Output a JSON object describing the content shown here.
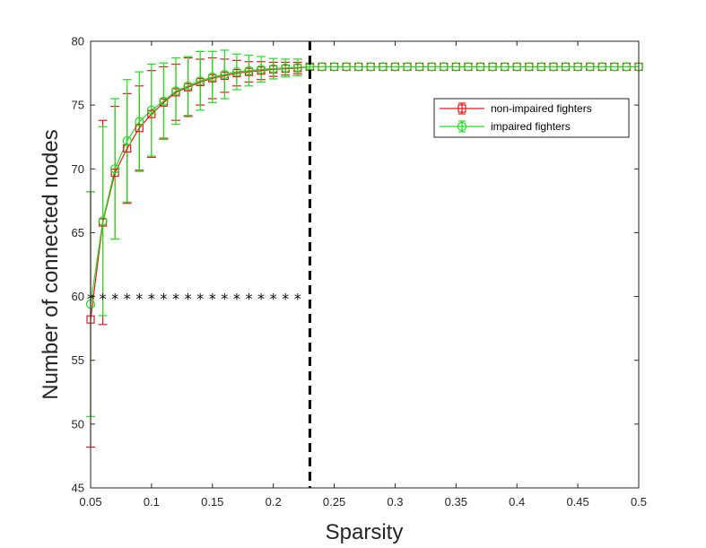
{
  "chart_data": {
    "type": "line",
    "title": "",
    "xlabel": "Sparsity",
    "ylabel": "Number of connected nodes",
    "xlim": [
      0.05,
      0.5
    ],
    "ylim": [
      45,
      80
    ],
    "x_ticks": [
      "0.05",
      "0.1",
      "0.15",
      "0.2",
      "0.25",
      "0.3",
      "0.35",
      "0.4",
      "0.45",
      "0.5"
    ],
    "y_ticks": [
      "45",
      "50",
      "55",
      "60",
      "65",
      "70",
      "75",
      "80"
    ],
    "grid": false,
    "legend_position": "top-right",
    "x": [
      0.05,
      0.06,
      0.07,
      0.08,
      0.09,
      0.1,
      0.11,
      0.12,
      0.13,
      0.14,
      0.15,
      0.16,
      0.17,
      0.18,
      0.19,
      0.2,
      0.21,
      0.22,
      0.23,
      0.24,
      0.25,
      0.26,
      0.27,
      0.28,
      0.29,
      0.3,
      0.31,
      0.32,
      0.33,
      0.34,
      0.35,
      0.36,
      0.37,
      0.38,
      0.39,
      0.4,
      0.41,
      0.42,
      0.43,
      0.44,
      0.45,
      0.46,
      0.47,
      0.48,
      0.49,
      0.5
    ],
    "series": [
      {
        "name": "non-impaired fighters",
        "color": "#e31a1c",
        "marker": "square",
        "values": [
          58.2,
          65.8,
          69.7,
          71.6,
          73.2,
          74.3,
          75.2,
          76.0,
          76.4,
          76.8,
          77.1,
          77.3,
          77.5,
          77.6,
          77.7,
          77.8,
          77.85,
          77.9,
          78.0,
          78.0,
          78.0,
          78.0,
          78.0,
          78.0,
          78.0,
          78.0,
          78.0,
          78.0,
          78.0,
          78.0,
          78.0,
          78.0,
          78.0,
          78.0,
          78.0,
          78.0,
          78.0,
          78.0,
          78.0,
          78.0,
          78.0,
          78.0,
          78.0,
          78.0,
          78.0,
          78.0
        ],
        "errors": [
          10.0,
          8.0,
          5.2,
          4.3,
          3.3,
          3.4,
          2.8,
          2.2,
          2.3,
          1.8,
          1.6,
          1.3,
          1.0,
          0.8,
          0.7,
          0.55,
          0.5,
          0.45,
          0.2,
          0,
          0,
          0,
          0,
          0,
          0,
          0,
          0,
          0,
          0,
          0,
          0,
          0,
          0,
          0,
          0,
          0,
          0,
          0,
          0,
          0,
          0,
          0,
          0,
          0,
          0,
          0
        ]
      },
      {
        "name": "impaired fighters",
        "color": "#22dd22",
        "marker": "circle",
        "values": [
          59.4,
          65.9,
          70.0,
          72.2,
          73.7,
          74.6,
          75.3,
          76.1,
          76.5,
          76.9,
          77.2,
          77.4,
          77.6,
          77.7,
          77.8,
          77.85,
          77.9,
          77.95,
          78.0,
          78.0,
          78.0,
          78.0,
          78.0,
          78.0,
          78.0,
          78.0,
          78.0,
          78.0,
          78.0,
          78.0,
          78.0,
          78.0,
          78.0,
          78.0,
          78.0,
          78.0,
          78.0,
          78.0,
          78.0,
          78.0,
          78.0,
          78.0,
          78.0,
          78.0,
          78.0,
          78.0
        ],
        "errors": [
          8.8,
          7.4,
          5.5,
          4.8,
          3.9,
          3.6,
          3.0,
          2.6,
          2.3,
          2.3,
          2.0,
          1.9,
          1.4,
          1.2,
          1.0,
          0.8,
          0.7,
          0.65,
          0.2,
          0,
          0,
          0,
          0,
          0,
          0,
          0,
          0,
          0,
          0,
          0,
          0,
          0,
          0,
          0,
          0,
          0,
          0,
          0,
          0,
          0,
          0,
          0,
          0,
          0,
          0,
          0
        ]
      }
    ],
    "significance_markers": {
      "symbol": "*",
      "y": 60,
      "x": [
        0.05,
        0.06,
        0.07,
        0.08,
        0.09,
        0.1,
        0.11,
        0.12,
        0.13,
        0.14,
        0.15,
        0.16,
        0.17,
        0.18,
        0.19,
        0.2,
        0.21,
        0.22
      ]
    },
    "vertical_line": {
      "x": 0.23,
      "style": "dashed",
      "color": "#000000"
    }
  }
}
